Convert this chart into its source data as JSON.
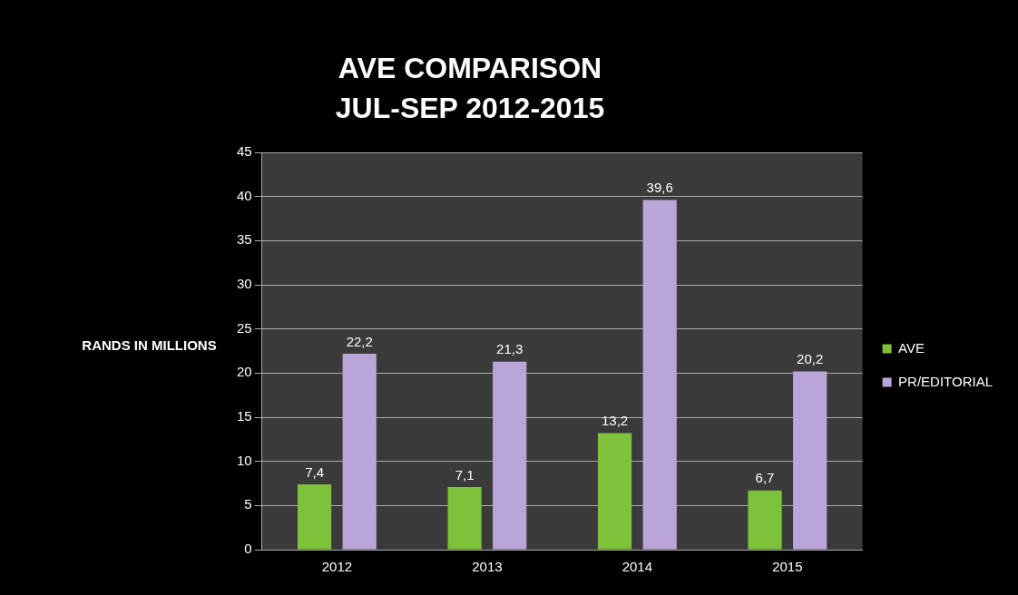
{
  "chart_data": {
    "type": "bar",
    "title": "AVE COMPARISON",
    "subtitle": "JUL-SEP 2012-2015",
    "ylabel": "RANDS IN MILLIONS",
    "categories": [
      "2012",
      "2013",
      "2014",
      "2015"
    ],
    "series": [
      {
        "name": "AVE",
        "color": "#7cc23a",
        "values": [
          7.4,
          7.1,
          13.2,
          6.7
        ],
        "value_labels": [
          "7,4",
          "7,1",
          "13,2",
          "6,7"
        ]
      },
      {
        "name": "PR/EDITORIAL",
        "color": "#b9a5d8",
        "values": [
          22.2,
          21.3,
          39.6,
          20.2
        ],
        "value_labels": [
          "22,2",
          "21,3",
          "39,6",
          "20,2"
        ]
      }
    ],
    "ylim": [
      0,
      45
    ],
    "yticks": [
      0,
      5,
      10,
      15,
      20,
      25,
      30,
      35,
      40,
      45
    ],
    "grid": "y",
    "legend": "right"
  }
}
